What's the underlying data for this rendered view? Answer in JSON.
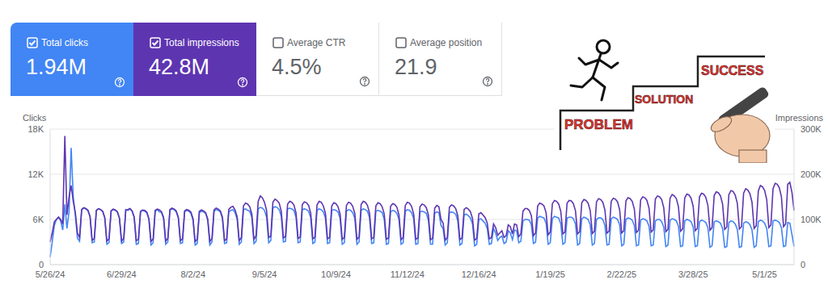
{
  "cards": [
    {
      "label": "Total clicks",
      "value": "1.94M",
      "checked": true,
      "color": "#4285f4"
    },
    {
      "label": "Total impressions",
      "value": "42.8M",
      "checked": true,
      "color": "#5e35b1"
    },
    {
      "label": "Average CTR",
      "value": "4.5%",
      "checked": false,
      "color": "#ffffff"
    },
    {
      "label": "Average position",
      "value": "21.9",
      "checked": false,
      "color": "#ffffff"
    }
  ],
  "illustration": {
    "steps": [
      "PROBLEM",
      "SOLUTION",
      "SUCCESS"
    ]
  },
  "chart_data": {
    "type": "line",
    "ylabel": "Clicks",
    "y2label": "Impressions",
    "grid": true,
    "ylim": [
      0,
      18000
    ],
    "yticks": [
      0,
      {
        "value": 6000,
        "label": "6K"
      },
      {
        "value": 12000,
        "label": "12K"
      },
      {
        "value": 18000,
        "label": "18K"
      }
    ],
    "y2lim": [
      0,
      300000
    ],
    "y2ticks": [
      0,
      {
        "value": 100000,
        "label": "100K"
      },
      {
        "value": 200000,
        "label": "200K"
      },
      {
        "value": 300000,
        "label": "300K"
      }
    ],
    "categories": [
      "5/26/24",
      null,
      null,
      null,
      null,
      null,
      null,
      null,
      null,
      null,
      null,
      null,
      null,
      null,
      null,
      null,
      null,
      null,
      null,
      null,
      null,
      null,
      null,
      null,
      null,
      null,
      null,
      null,
      null,
      null,
      null,
      null,
      null,
      null,
      "6/29/24",
      null,
      null,
      null,
      null,
      null,
      null,
      null,
      null,
      null,
      null,
      null,
      null,
      null,
      null,
      null,
      null,
      null,
      null,
      null,
      null,
      null,
      null,
      null,
      null,
      null,
      null,
      null,
      null,
      null,
      null,
      null,
      null,
      null,
      "8/2/24",
      null,
      null,
      null,
      null,
      null,
      null,
      null,
      null,
      null,
      null,
      null,
      null,
      null,
      null,
      null,
      null,
      null,
      null,
      null,
      null,
      null,
      null,
      null,
      null,
      null,
      null,
      null,
      null,
      null,
      null,
      null,
      null,
      null,
      "9/5/24",
      null,
      null,
      null,
      null,
      null,
      null,
      null,
      null,
      null,
      null,
      null,
      null,
      null,
      null,
      null,
      null,
      null,
      null,
      null,
      null,
      null,
      null,
      null,
      null,
      null,
      null,
      null,
      null,
      null,
      null,
      null,
      null,
      null,
      "10/9/24",
      null,
      null,
      null,
      null,
      null,
      null,
      null,
      null,
      null,
      null,
      null,
      null,
      null,
      null,
      null,
      null,
      null,
      null,
      null,
      null,
      null,
      null,
      null,
      null,
      null,
      null,
      null,
      null,
      null,
      null,
      null,
      null,
      null,
      "11/12/24",
      null,
      null,
      null,
      null,
      null,
      null,
      null,
      null,
      null,
      null,
      null,
      null,
      null,
      null,
      null,
      null,
      null,
      null,
      null,
      null,
      null,
      null,
      null,
      null,
      null,
      null,
      null,
      null,
      null,
      null,
      null,
      null,
      null,
      "12/16/24",
      null,
      null,
      null,
      null,
      null,
      null,
      null,
      null,
      null,
      null,
      null,
      null,
      null,
      null,
      null,
      null,
      null,
      null,
      null,
      null,
      null,
      null,
      null,
      null,
      null,
      null,
      null,
      null,
      null,
      null,
      null,
      null,
      null,
      "1/19/25",
      null,
      null,
      null,
      null,
      null,
      null,
      null,
      null,
      null,
      null,
      null,
      null,
      null,
      null,
      null,
      null,
      null,
      null,
      null,
      null,
      null,
      null,
      null,
      null,
      null,
      null,
      null,
      null,
      null,
      null,
      null,
      null,
      null,
      "2/22/25",
      null,
      null,
      null,
      null,
      null,
      null,
      null,
      null,
      null,
      null,
      null,
      null,
      null,
      null,
      null,
      null,
      null,
      null,
      null,
      null,
      null,
      null,
      null,
      null,
      null,
      null,
      null,
      null,
      null,
      null,
      null,
      null,
      null,
      "3/28/25",
      null,
      null,
      null,
      null,
      null,
      null,
      null,
      null,
      null,
      null,
      null,
      null,
      null,
      null,
      null,
      null,
      null,
      null,
      null,
      null,
      null,
      null,
      null,
      null,
      null,
      null,
      null,
      null,
      null,
      null,
      null,
      null,
      null,
      "5/1/25",
      null,
      null,
      null,
      null,
      null,
      null,
      null,
      null,
      null,
      null,
      null,
      null,
      null,
      null
    ],
    "series": [
      {
        "name": "Clicks",
        "color": "#4285f4",
        "type": "line",
        "values": [
          1000,
          3000,
          5200,
          6000,
          6300,
          5800,
          4600,
          8000,
          4800,
          7000,
          15500,
          9000,
          6500,
          3500,
          3100,
          7300,
          7500,
          7400,
          7200,
          6400,
          2900,
          3000,
          7200,
          7400,
          7300,
          7100,
          6200,
          2700,
          2900,
          7100,
          7300,
          7200,
          7000,
          6100,
          2800,
          3000,
          7300,
          7200,
          7400,
          7100,
          6300,
          2700,
          2800,
          7000,
          7200,
          7100,
          6900,
          6000,
          2600,
          2900,
          7100,
          7300,
          7000,
          6900,
          6100,
          2700,
          3000,
          7200,
          7400,
          7300,
          7000,
          6200,
          2800,
          2900,
          7000,
          7200,
          7100,
          6800,
          5900,
          2600,
          2800,
          6900,
          7100,
          7000,
          6800,
          5900,
          2600,
          3000,
          7100,
          7300,
          7200,
          7000,
          6100,
          2800,
          2900,
          7000,
          7200,
          7300,
          6900,
          6000,
          2700,
          3000,
          7300,
          7400,
          7200,
          7100,
          6200,
          2800,
          3100,
          7400,
          7600,
          7500,
          7200,
          6300,
          2900,
          3200,
          7500,
          7700,
          7600,
          7300,
          6400,
          3000,
          3100,
          7400,
          7500,
          7400,
          7200,
          6300,
          2900,
          3000,
          7300,
          7400,
          7300,
          7100,
          6200,
          2800,
          3000,
          7200,
          7400,
          7300,
          7000,
          6200,
          2800,
          2900,
          7200,
          7300,
          7200,
          7000,
          6100,
          2700,
          2900,
          7100,
          7300,
          7200,
          6900,
          6100,
          2700,
          3000,
          7200,
          7400,
          7300,
          7100,
          6200,
          2800,
          2900,
          7100,
          7200,
          7100,
          6900,
          6000,
          2700,
          2800,
          7000,
          7200,
          7100,
          6800,
          6000,
          2700,
          2900,
          7100,
          7300,
          7200,
          6900,
          6100,
          2700,
          2800,
          7000,
          7100,
          7000,
          6800,
          5900,
          2700,
          2700,
          6800,
          7000,
          6900,
          5200,
          4800,
          2600,
          2900,
          6900,
          7000,
          6900,
          6700,
          5800,
          2600,
          2800,
          6600,
          6700,
          6500,
          6200,
          5400,
          2500,
          2700,
          6000,
          6100,
          5800,
          5500,
          4800,
          2700,
          2800,
          4800,
          4200,
          3200,
          3600,
          3800,
          2800,
          3000,
          4500,
          4200,
          3300,
          4600,
          4500,
          2900,
          3100,
          5800,
          6000,
          6000,
          5900,
          5300,
          2800,
          3000,
          6200,
          6400,
          6300,
          6200,
          5500,
          2700,
          2900,
          6100,
          6400,
          6300,
          6200,
          5400,
          2700,
          2900,
          6200,
          6300,
          6300,
          6100,
          5400,
          2600,
          2800,
          6100,
          6300,
          6200,
          6000,
          5300,
          2600,
          2800,
          6000,
          6200,
          6200,
          6000,
          5200,
          2600,
          2700,
          6100,
          6300,
          6200,
          6000,
          5300,
          2500,
          2700,
          6000,
          6200,
          6100,
          5900,
          5200,
          2500,
          2600,
          5900,
          6100,
          6000,
          5800,
          5100,
          2500,
          2600,
          5800,
          6000,
          6000,
          5700,
          5000,
          2400,
          2600,
          5900,
          6100,
          6000,
          5800,
          5100,
          2400,
          2500,
          5800,
          6000,
          5900,
          5700,
          5000,
          2400,
          2500,
          5700,
          5900,
          5800,
          5600,
          4900,
          2300,
          2500,
          5700,
          5800,
          5700,
          5500,
          4800,
          2300,
          2400,
          5600,
          5800,
          5700,
          5400,
          4700,
          2300,
          2400,
          5500,
          5700,
          5600,
          5300,
          4600,
          2300,
          2500,
          5700,
          5900,
          5800,
          5500,
          4800,
          2400,
          2500,
          5800,
          5900,
          5800,
          5600,
          4900,
          2400,
          2500,
          5600,
          5500,
          4000,
          2400
        ]
      },
      {
        "name": "Impressions",
        "color": "#5e35b1",
        "type": "line",
        "axis": "y2",
        "values": [
          50000,
          70000,
          95000,
          100000,
          105000,
          100000,
          90000,
          285000,
          110000,
          150000,
          175000,
          140000,
          115000,
          70000,
          60000,
          122000,
          126000,
          124000,
          120000,
          106000,
          54000,
          58000,
          120000,
          124000,
          122000,
          118000,
          104000,
          52000,
          57000,
          119000,
          123000,
          121000,
          117000,
          103000,
          52000,
          58000,
          121000,
          122000,
          124000,
          119000,
          105000,
          53000,
          56000,
          118000,
          121000,
          120000,
          116000,
          102000,
          51000,
          57000,
          120000,
          123000,
          121000,
          117000,
          104000,
          52000,
          58000,
          122000,
          125000,
          123000,
          119000,
          105000,
          53000,
          57000,
          119000,
          122000,
          120000,
          116000,
          102000,
          51000,
          56000,
          118000,
          121000,
          119000,
          115000,
          101000,
          51000,
          58000,
          121000,
          125000,
          123000,
          119000,
          105000,
          53000,
          57000,
          122000,
          127000,
          129000,
          121000,
          106000,
          53000,
          60000,
          130000,
          136000,
          134000,
          128000,
          112000,
          56000,
          64000,
          140000,
          152000,
          148000,
          138000,
          120000,
          60000,
          63000,
          138000,
          145000,
          142000,
          136000,
          118000,
          59000,
          62000,
          134000,
          140000,
          138000,
          132000,
          115000,
          58000,
          61000,
          133000,
          139000,
          137000,
          131000,
          114000,
          57000,
          61000,
          132000,
          140000,
          138000,
          130000,
          114000,
          57000,
          60000,
          130000,
          137000,
          135000,
          128000,
          112000,
          56000,
          60000,
          131000,
          138000,
          136000,
          129000,
          113000,
          56000,
          61000,
          133000,
          140000,
          138000,
          131000,
          114000,
          57000,
          60000,
          130000,
          137000,
          135000,
          128000,
          112000,
          56000,
          59000,
          129000,
          135000,
          133000,
          127000,
          110000,
          55000,
          60000,
          131000,
          138000,
          136000,
          129000,
          112000,
          56000,
          59000,
          128000,
          134000,
          132000,
          126000,
          110000,
          55000,
          58000,
          125000,
          131000,
          128000,
          100000,
          92000,
          54000,
          60000,
          127000,
          132000,
          130000,
          124000,
          108000,
          55000,
          59000,
          122000,
          126000,
          123000,
          117000,
          102000,
          54000,
          58000,
          112000,
          115000,
          110000,
          104000,
          92000,
          57000,
          60000,
          90000,
          82000,
          65000,
          70000,
          75000,
          60000,
          64000,
          88000,
          84000,
          68000,
          90000,
          88000,
          62000,
          68000,
          118000,
          124000,
          124000,
          120000,
          108000,
          64000,
          70000,
          130000,
          136000,
          134000,
          130000,
          115000,
          66000,
          72000,
          135000,
          142000,
          140000,
          134000,
          118000,
          68000,
          72000,
          136000,
          142000,
          141000,
          135000,
          119000,
          68000,
          73000,
          137000,
          144000,
          142000,
          136000,
          120000,
          69000,
          74000,
          139000,
          146000,
          144000,
          138000,
          121000,
          70000,
          74000,
          140000,
          147000,
          145000,
          139000,
          122000,
          70000,
          75000,
          141000,
          148000,
          146000,
          140000,
          123000,
          71000,
          76000,
          143000,
          150000,
          148000,
          142000,
          125000,
          72000,
          77000,
          145000,
          152000,
          150000,
          144000,
          126000,
          73000,
          78000,
          147000,
          155000,
          152000,
          146000,
          128000,
          74000,
          79000,
          148000,
          156000,
          154000,
          147000,
          129000,
          75000,
          80000,
          150000,
          158000,
          156000,
          149000,
          131000,
          76000,
          82000,
          153000,
          161000,
          159000,
          152000,
          134000,
          78000,
          83000,
          155000,
          164000,
          162000,
          154000,
          136000,
          79000,
          84000,
          158000,
          168000,
          165000,
          157000,
          138000,
          80000,
          86000,
          163000,
          175000,
          172000,
          164000,
          144000,
          82000,
          88000,
          168000,
          180000,
          178000,
          170000,
          150000,
          84000,
          90000,
          178000,
          182000,
          160000,
          120000
        ]
      }
    ]
  }
}
